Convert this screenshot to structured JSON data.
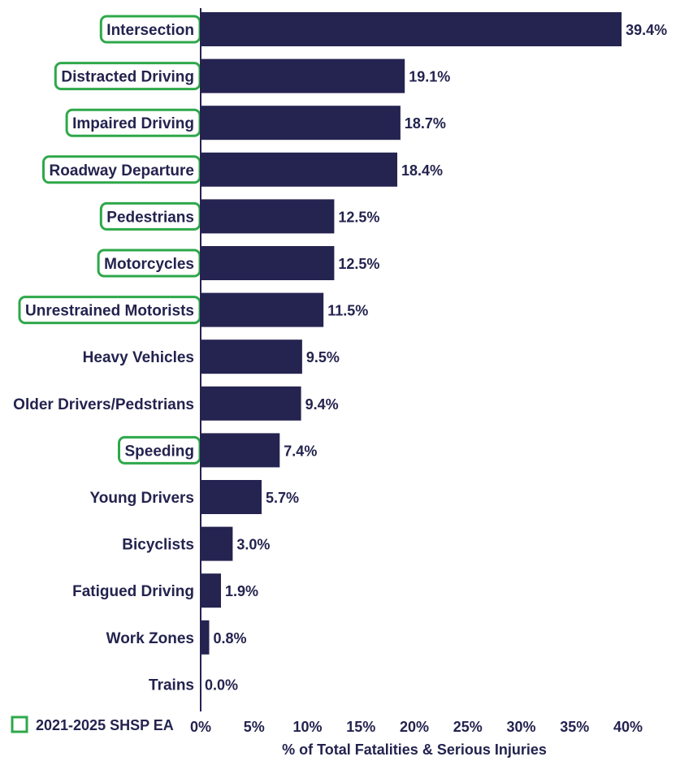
{
  "chart_data": {
    "type": "bar",
    "orientation": "horizontal",
    "categories": [
      "Intersection",
      "Distracted Driving",
      "Impaired Driving",
      "Roadway Departure",
      "Pedestrians",
      "Motorcycles",
      "Unrestrained Motorists",
      "Heavy Vehicles",
      "Older Drivers/Pedstrians",
      "Speeding",
      "Young Drivers",
      "Bicyclists",
      "Fatigued Driving",
      "Work Zones",
      "Trains"
    ],
    "values": [
      39.4,
      19.1,
      18.7,
      18.4,
      12.5,
      12.5,
      11.5,
      9.5,
      9.4,
      7.4,
      5.7,
      3.0,
      1.9,
      0.8,
      0.0
    ],
    "value_labels": [
      "39.4%",
      "19.1%",
      "18.7%",
      "18.4%",
      "12.5%",
      "12.5%",
      "11.5%",
      "9.5%",
      "9.4%",
      "7.4%",
      "5.7%",
      "3.0%",
      "1.9%",
      "0.8%",
      "0.0%"
    ],
    "highlighted": [
      true,
      true,
      true,
      true,
      true,
      true,
      true,
      false,
      false,
      true,
      false,
      false,
      false,
      false,
      false
    ],
    "xlim": [
      0,
      40
    ],
    "x_ticks": [
      "0%",
      "5%",
      "10%",
      "15%",
      "20%",
      "25%",
      "30%",
      "35%",
      "40%"
    ],
    "xlabel": "% of Total Fatalities & Serious Injuries",
    "ylabel": "",
    "title": "",
    "legend": {
      "label": "2021-2025 SHSP EA",
      "placement": "bottom-left"
    },
    "grid": false
  },
  "colors": {
    "bar": "#252350",
    "text": "#23234f",
    "highlight": "#2ea84a",
    "axis": "#252350"
  }
}
